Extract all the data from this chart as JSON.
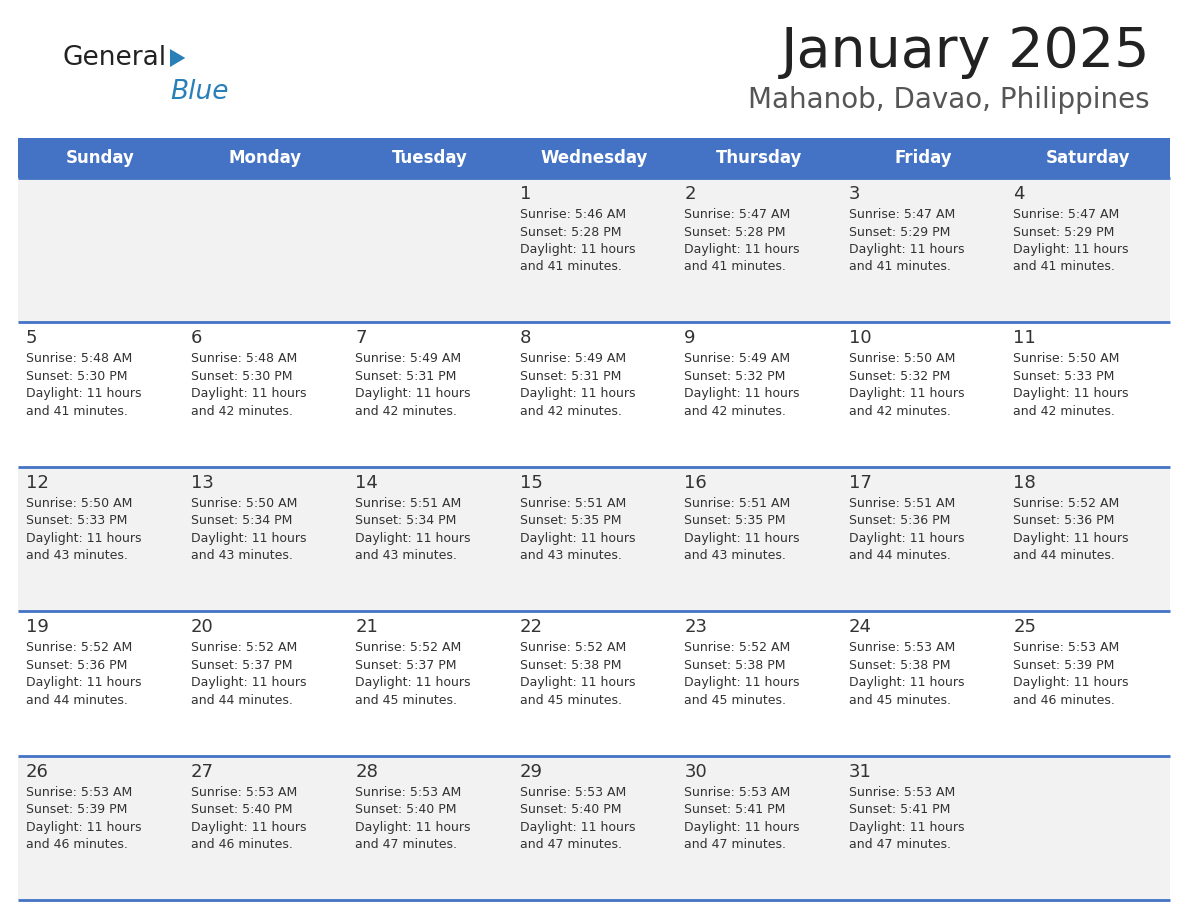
{
  "title": "January 2025",
  "subtitle": "Mahanob, Davao, Philippines",
  "days_of_week": [
    "Sunday",
    "Monday",
    "Tuesday",
    "Wednesday",
    "Thursday",
    "Friday",
    "Saturday"
  ],
  "header_bg": "#4472C4",
  "header_text_color": "#FFFFFF",
  "cell_bg_odd": "#F2F2F2",
  "cell_bg_even": "#FFFFFF",
  "row_line_color": "#4472C4",
  "text_color": "#333333",
  "title_color": "#222222",
  "subtitle_color": "#555555",
  "calendar_data": [
    [
      null,
      null,
      null,
      {
        "day": 1,
        "sunrise": "5:46 AM",
        "sunset": "5:28 PM",
        "daylight": "11 hours and 41 minutes."
      },
      {
        "day": 2,
        "sunrise": "5:47 AM",
        "sunset": "5:28 PM",
        "daylight": "11 hours and 41 minutes."
      },
      {
        "day": 3,
        "sunrise": "5:47 AM",
        "sunset": "5:29 PM",
        "daylight": "11 hours and 41 minutes."
      },
      {
        "day": 4,
        "sunrise": "5:47 AM",
        "sunset": "5:29 PM",
        "daylight": "11 hours and 41 minutes."
      }
    ],
    [
      {
        "day": 5,
        "sunrise": "5:48 AM",
        "sunset": "5:30 PM",
        "daylight": "11 hours and 41 minutes."
      },
      {
        "day": 6,
        "sunrise": "5:48 AM",
        "sunset": "5:30 PM",
        "daylight": "11 hours and 42 minutes."
      },
      {
        "day": 7,
        "sunrise": "5:49 AM",
        "sunset": "5:31 PM",
        "daylight": "11 hours and 42 minutes."
      },
      {
        "day": 8,
        "sunrise": "5:49 AM",
        "sunset": "5:31 PM",
        "daylight": "11 hours and 42 minutes."
      },
      {
        "day": 9,
        "sunrise": "5:49 AM",
        "sunset": "5:32 PM",
        "daylight": "11 hours and 42 minutes."
      },
      {
        "day": 10,
        "sunrise": "5:50 AM",
        "sunset": "5:32 PM",
        "daylight": "11 hours and 42 minutes."
      },
      {
        "day": 11,
        "sunrise": "5:50 AM",
        "sunset": "5:33 PM",
        "daylight": "11 hours and 42 minutes."
      }
    ],
    [
      {
        "day": 12,
        "sunrise": "5:50 AM",
        "sunset": "5:33 PM",
        "daylight": "11 hours and 43 minutes."
      },
      {
        "day": 13,
        "sunrise": "5:50 AM",
        "sunset": "5:34 PM",
        "daylight": "11 hours and 43 minutes."
      },
      {
        "day": 14,
        "sunrise": "5:51 AM",
        "sunset": "5:34 PM",
        "daylight": "11 hours and 43 minutes."
      },
      {
        "day": 15,
        "sunrise": "5:51 AM",
        "sunset": "5:35 PM",
        "daylight": "11 hours and 43 minutes."
      },
      {
        "day": 16,
        "sunrise": "5:51 AM",
        "sunset": "5:35 PM",
        "daylight": "11 hours and 43 minutes."
      },
      {
        "day": 17,
        "sunrise": "5:51 AM",
        "sunset": "5:36 PM",
        "daylight": "11 hours and 44 minutes."
      },
      {
        "day": 18,
        "sunrise": "5:52 AM",
        "sunset": "5:36 PM",
        "daylight": "11 hours and 44 minutes."
      }
    ],
    [
      {
        "day": 19,
        "sunrise": "5:52 AM",
        "sunset": "5:36 PM",
        "daylight": "11 hours and 44 minutes."
      },
      {
        "day": 20,
        "sunrise": "5:52 AM",
        "sunset": "5:37 PM",
        "daylight": "11 hours and 44 minutes."
      },
      {
        "day": 21,
        "sunrise": "5:52 AM",
        "sunset": "5:37 PM",
        "daylight": "11 hours and 45 minutes."
      },
      {
        "day": 22,
        "sunrise": "5:52 AM",
        "sunset": "5:38 PM",
        "daylight": "11 hours and 45 minutes."
      },
      {
        "day": 23,
        "sunrise": "5:52 AM",
        "sunset": "5:38 PM",
        "daylight": "11 hours and 45 minutes."
      },
      {
        "day": 24,
        "sunrise": "5:53 AM",
        "sunset": "5:38 PM",
        "daylight": "11 hours and 45 minutes."
      },
      {
        "day": 25,
        "sunrise": "5:53 AM",
        "sunset": "5:39 PM",
        "daylight": "11 hours and 46 minutes."
      }
    ],
    [
      {
        "day": 26,
        "sunrise": "5:53 AM",
        "sunset": "5:39 PM",
        "daylight": "11 hours and 46 minutes."
      },
      {
        "day": 27,
        "sunrise": "5:53 AM",
        "sunset": "5:40 PM",
        "daylight": "11 hours and 46 minutes."
      },
      {
        "day": 28,
        "sunrise": "5:53 AM",
        "sunset": "5:40 PM",
        "daylight": "11 hours and 47 minutes."
      },
      {
        "day": 29,
        "sunrise": "5:53 AM",
        "sunset": "5:40 PM",
        "daylight": "11 hours and 47 minutes."
      },
      {
        "day": 30,
        "sunrise": "5:53 AM",
        "sunset": "5:41 PM",
        "daylight": "11 hours and 47 minutes."
      },
      {
        "day": 31,
        "sunrise": "5:53 AM",
        "sunset": "5:41 PM",
        "daylight": "11 hours and 47 minutes."
      },
      null
    ]
  ],
  "logo_general_color": "#222222",
  "logo_blue_color": "#2980B9",
  "logo_triangle_color": "#2980B9",
  "fig_width": 11.88,
  "fig_height": 9.18,
  "dpi": 100
}
